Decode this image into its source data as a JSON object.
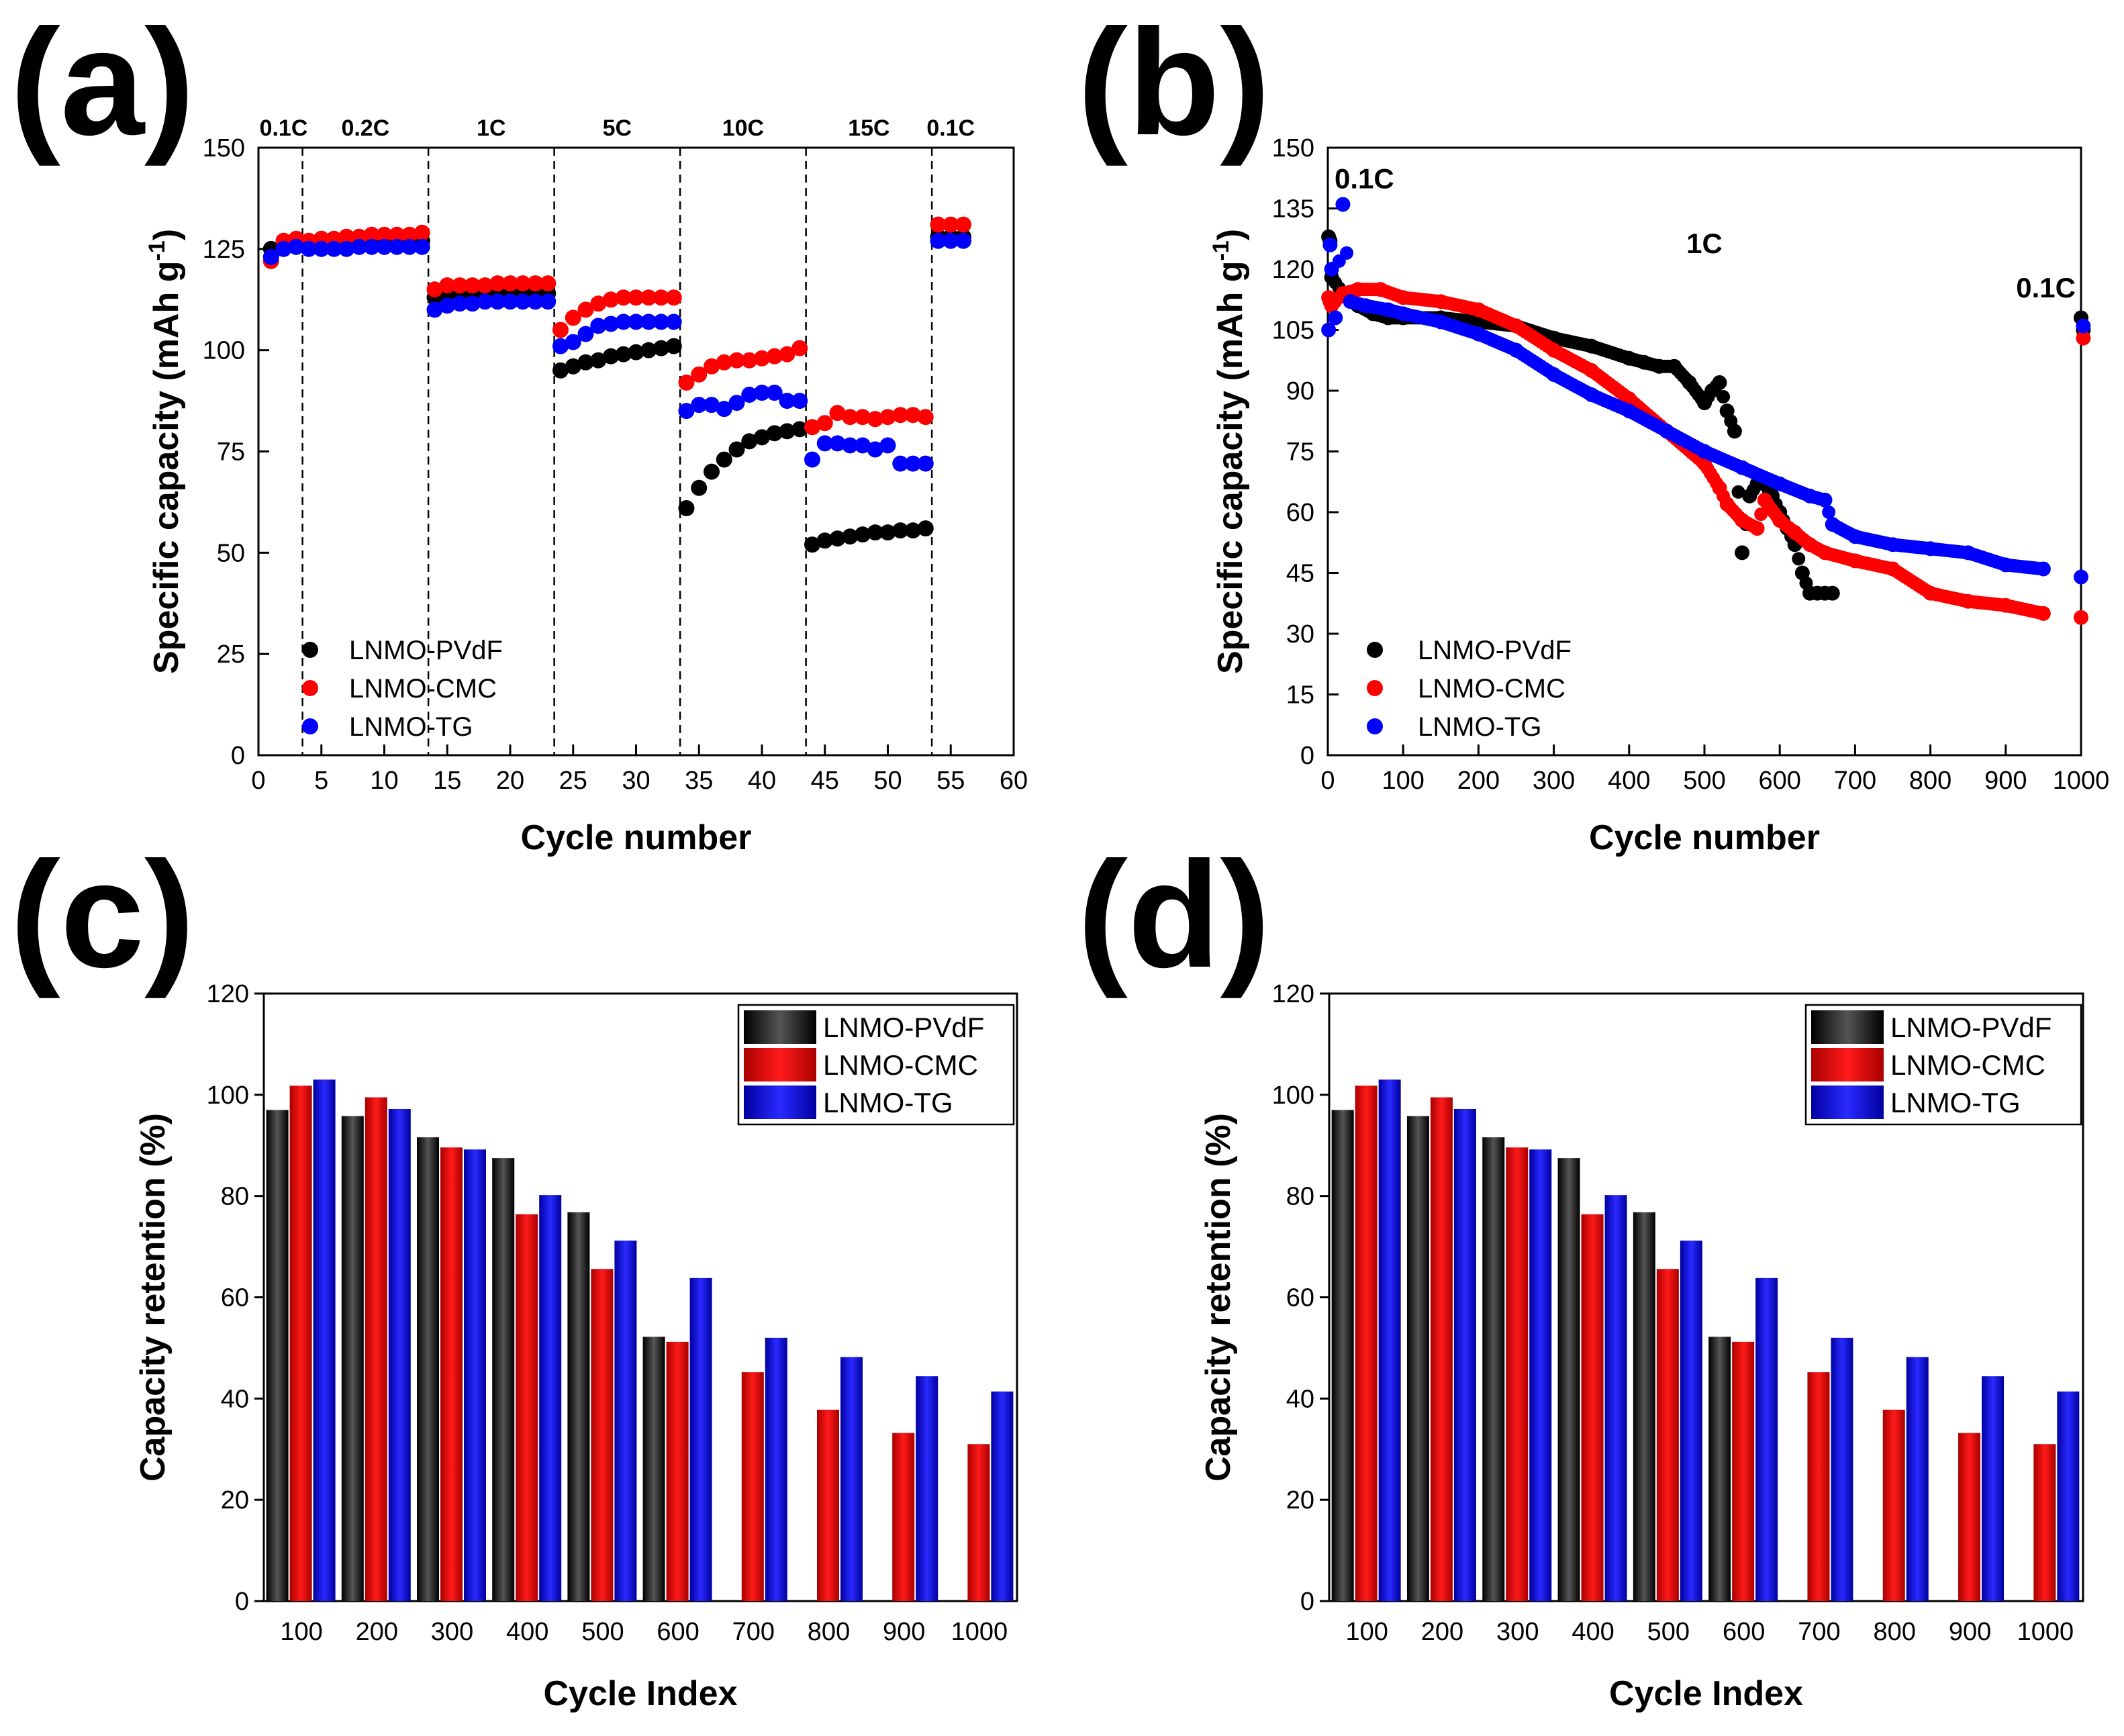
{
  "colors": {
    "pvdf": "#000000",
    "cmc": "#ff0000",
    "tg": "#0000ff",
    "axis": "#000000"
  },
  "series_names": [
    "LNMO-PVdF",
    "LNMO-CMC",
    "LNMO-TG"
  ],
  "panels": {
    "a": {
      "label": "(a)"
    },
    "b": {
      "label": "(b)"
    },
    "c": {
      "label": "(c)"
    },
    "d": {
      "label": "(d)"
    }
  },
  "chart_data": [
    {
      "id": "a",
      "type": "scatter",
      "title": "",
      "xlabel": "Cycle number",
      "ylabel": "Specific capacity (mAh g-1)",
      "ylabel_parts": {
        "main": "Specific capacity (mAh g",
        "sup": "-1",
        "close": ")"
      },
      "xlim": [
        0,
        60
      ],
      "ylim": [
        0,
        150
      ],
      "xticks": [
        0,
        5,
        10,
        15,
        20,
        25,
        30,
        35,
        40,
        45,
        50,
        55,
        60
      ],
      "yticks": [
        0,
        25,
        50,
        75,
        100,
        125,
        150
      ],
      "rate_regions": [
        {
          "label": "0.1C",
          "start": 0.5,
          "end": 3.5
        },
        {
          "label": "0.2C",
          "start": 3.5,
          "end": 13.5
        },
        {
          "label": "1C",
          "start": 13.5,
          "end": 23.5
        },
        {
          "label": "5C",
          "start": 23.5,
          "end": 33.5
        },
        {
          "label": "10C",
          "start": 33.5,
          "end": 43.5
        },
        {
          "label": "15C",
          "start": 43.5,
          "end": 53.5
        },
        {
          "label": "0.1C",
          "start": 53.5,
          "end": 56.5
        }
      ],
      "dividers": [
        3.5,
        13.5,
        23.5,
        33.5,
        43.5,
        53.5
      ],
      "legend_position": "bottom-left",
      "x": [
        1,
        2,
        3,
        4,
        5,
        6,
        7,
        8,
        9,
        10,
        11,
        12,
        13,
        14,
        15,
        16,
        17,
        18,
        19,
        20,
        21,
        22,
        23,
        24,
        25,
        26,
        27,
        28,
        29,
        30,
        31,
        32,
        33,
        34,
        35,
        36,
        37,
        38,
        39,
        40,
        41,
        42,
        43,
        44,
        45,
        46,
        47,
        48,
        49,
        50,
        51,
        52,
        53,
        54,
        55,
        56
      ],
      "series": [
        {
          "name": "LNMO-PVdF",
          "values": [
            125,
            126,
            126,
            126,
            126,
            127,
            127,
            127,
            127,
            127,
            127,
            127,
            127,
            113,
            114,
            114,
            114,
            114,
            114,
            114,
            114,
            114,
            114,
            95,
            96,
            97,
            97.5,
            98.5,
            99,
            99.5,
            100,
            100.5,
            101,
            61,
            66,
            70,
            73,
            75.5,
            77.5,
            78.5,
            79.5,
            80,
            80.5,
            52,
            53,
            53.5,
            54,
            54.5,
            55,
            55,
            55.5,
            55.5,
            56,
            128,
            128,
            128
          ]
        },
        {
          "name": "LNMO-CMC",
          "values": [
            122,
            127,
            127.5,
            127,
            127.5,
            127.5,
            128,
            128,
            128.5,
            128.5,
            128.5,
            128.5,
            129,
            115,
            116,
            116,
            116,
            116,
            116.5,
            116.5,
            116.5,
            116.5,
            116.5,
            105,
            108,
            110,
            111.5,
            112.5,
            113,
            113,
            113,
            113,
            113,
            92,
            94,
            96,
            97,
            97.5,
            97.5,
            98,
            98.5,
            99,
            100.5,
            81,
            82,
            84.5,
            83.5,
            83.5,
            83,
            83.5,
            84,
            84,
            83.5,
            131,
            131,
            131
          ]
        },
        {
          "name": "LNMO-TG",
          "values": [
            123,
            125,
            125.5,
            125,
            125,
            125,
            125,
            125.5,
            125.5,
            125.5,
            125.5,
            125.5,
            125.5,
            110,
            111,
            111.5,
            111.5,
            112,
            112,
            112,
            112,
            112,
            112,
            101,
            102,
            104,
            106,
            106.5,
            107,
            107,
            107,
            107,
            107,
            85,
            86.5,
            86.5,
            85.5,
            87,
            89,
            89.5,
            89.5,
            87.5,
            87.5,
            73,
            77,
            77,
            76.5,
            76.5,
            75.5,
            76.5,
            72,
            72,
            72,
            127,
            127,
            127
          ]
        }
      ]
    },
    {
      "id": "b",
      "type": "scatter",
      "title": "",
      "xlabel": "Cycle number",
      "ylabel": "Specific capacity (mAh g-1)",
      "ylabel_parts": {
        "main": "Specific capacity (mAh g",
        "sup": "-1",
        "close": ")"
      },
      "xlim": [
        0,
        1000
      ],
      "ylim": [
        0,
        150
      ],
      "xticks": [
        0,
        100,
        200,
        300,
        400,
        500,
        600,
        700,
        800,
        900,
        1000
      ],
      "yticks": [
        0,
        15,
        30,
        45,
        60,
        75,
        90,
        105,
        120,
        135,
        150
      ],
      "annotations": [
        "0.1C",
        "1C",
        "0.1C"
      ],
      "legend_position": "bottom-left",
      "series": [
        {
          "name": "LNMO-PVdF",
          "x": [
            1,
            3,
            5,
            20,
            40,
            60,
            80,
            100,
            150,
            200,
            250,
            300,
            350,
            400,
            420,
            440,
            460,
            480,
            500,
            510,
            520,
            530,
            540,
            550,
            560,
            570,
            580,
            590,
            600,
            610,
            620,
            630,
            640,
            650,
            660,
            670,
            1000,
            1003
          ],
          "y": [
            128,
            127,
            118,
            114,
            111,
            109,
            108,
            108,
            108,
            107,
            106,
            103,
            101,
            98,
            97,
            96,
            96,
            92,
            87,
            90,
            92,
            85,
            80,
            50,
            64,
            67,
            67,
            64,
            60,
            56,
            52,
            45,
            40,
            40,
            40,
            40,
            108,
            105
          ]
        },
        {
          "name": "LNMO-CMC",
          "x": [
            1,
            3,
            5,
            20,
            40,
            70,
            100,
            150,
            200,
            250,
            300,
            350,
            400,
            450,
            500,
            520,
            530,
            550,
            570,
            580,
            600,
            620,
            640,
            660,
            700,
            750,
            800,
            850,
            900,
            950,
            1000,
            1003
          ],
          "y": [
            113,
            112,
            111,
            114,
            115,
            115,
            113,
            112,
            110,
            106,
            100,
            95,
            88,
            80,
            72,
            66,
            62,
            58,
            56,
            63,
            58,
            55,
            52,
            50,
            48,
            46,
            40,
            38,
            37,
            35,
            34,
            103
          ]
        },
        {
          "name": "LNMO-TG",
          "x": [
            1,
            3,
            5,
            10,
            20,
            30,
            50,
            80,
            100,
            150,
            200,
            250,
            300,
            350,
            400,
            450,
            500,
            550,
            600,
            640,
            660,
            670,
            700,
            750,
            800,
            850,
            900,
            950,
            1000,
            1003
          ],
          "y": [
            105,
            126,
            120,
            108,
            136,
            112,
            111,
            110,
            109,
            107,
            104,
            100,
            94,
            89,
            85,
            80,
            75,
            71,
            67,
            64,
            63,
            57,
            54,
            52,
            51,
            50,
            47,
            46,
            44,
            106
          ]
        }
      ]
    },
    {
      "id": "c",
      "type": "bar",
      "title": "",
      "xlabel": "Cycle Index",
      "ylabel": "Capacity retention (%)",
      "ylim": [
        0,
        120
      ],
      "yticks": [
        0,
        20,
        40,
        60,
        80,
        100,
        120
      ],
      "categories": [
        "100",
        "200",
        "300",
        "400",
        "500",
        "600",
        "700",
        "800",
        "900",
        "1000"
      ],
      "legend_position": "top-right",
      "series": [
        {
          "name": "LNMO-PVdF",
          "values": [
            97,
            95.8,
            91.6,
            87.5,
            76.8,
            52.2,
            null,
            null,
            null,
            null
          ]
        },
        {
          "name": "LNMO-CMC",
          "values": [
            101.8,
            99.5,
            89.6,
            76.4,
            65.6,
            51.2,
            45.2,
            37.8,
            33.2,
            31
          ]
        },
        {
          "name": "LNMO-TG",
          "values": [
            103,
            97.2,
            89.2,
            80.2,
            71.2,
            63.8,
            52,
            48.2,
            44.4,
            41.4
          ]
        }
      ]
    },
    {
      "id": "d",
      "type": "bar",
      "title": "",
      "xlabel": "Cycle Index",
      "ylabel": "Capacity retention (%)",
      "ylim": [
        0,
        120
      ],
      "yticks": [
        0,
        20,
        40,
        60,
        80,
        100,
        120
      ],
      "categories": [
        "100",
        "200",
        "300",
        "400",
        "500",
        "600",
        "700",
        "800",
        "900",
        "1000"
      ],
      "legend_position": "top-right",
      "series": [
        {
          "name": "LNMO-PVdF",
          "values": [
            97,
            95.8,
            91.6,
            87.5,
            76.8,
            52.2,
            null,
            null,
            null,
            null
          ]
        },
        {
          "name": "LNMO-CMC",
          "values": [
            101.8,
            99.5,
            89.6,
            76.4,
            65.6,
            51.2,
            45.2,
            37.8,
            33.2,
            31
          ]
        },
        {
          "name": "LNMO-TG",
          "values": [
            103,
            97.2,
            89.2,
            80.2,
            71.2,
            63.8,
            52,
            48.2,
            44.4,
            41.4
          ]
        }
      ]
    }
  ]
}
